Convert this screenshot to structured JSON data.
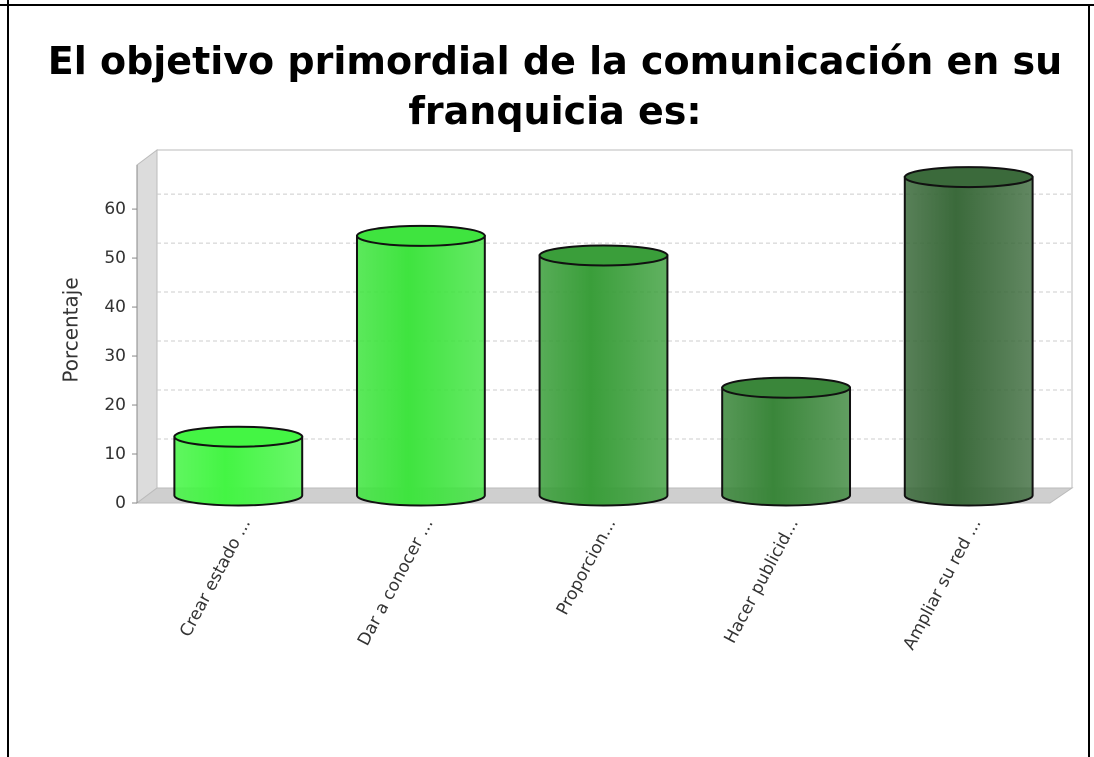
{
  "chart_data": {
    "type": "bar",
    "style": "3d-cylinder",
    "title": "El objetivo primordial de la comunicación en su franquicia es:",
    "y_label": "Porcentaje",
    "categories": [
      "Crear estado ...",
      "Dar a conocer ...",
      "Proporcion...",
      "Hacer publicid...",
      "Ampliar su red ..."
    ],
    "values": [
      12,
      53,
      49,
      22,
      65
    ],
    "colors": [
      "#44f544",
      "#3fe43f",
      "#3a9e3a",
      "#3a863a",
      "#3b6a3b"
    ],
    "ylim": [
      0,
      69
    ],
    "yticks": [
      0,
      10,
      20,
      30,
      40,
      50,
      60
    ],
    "grid": true
  }
}
